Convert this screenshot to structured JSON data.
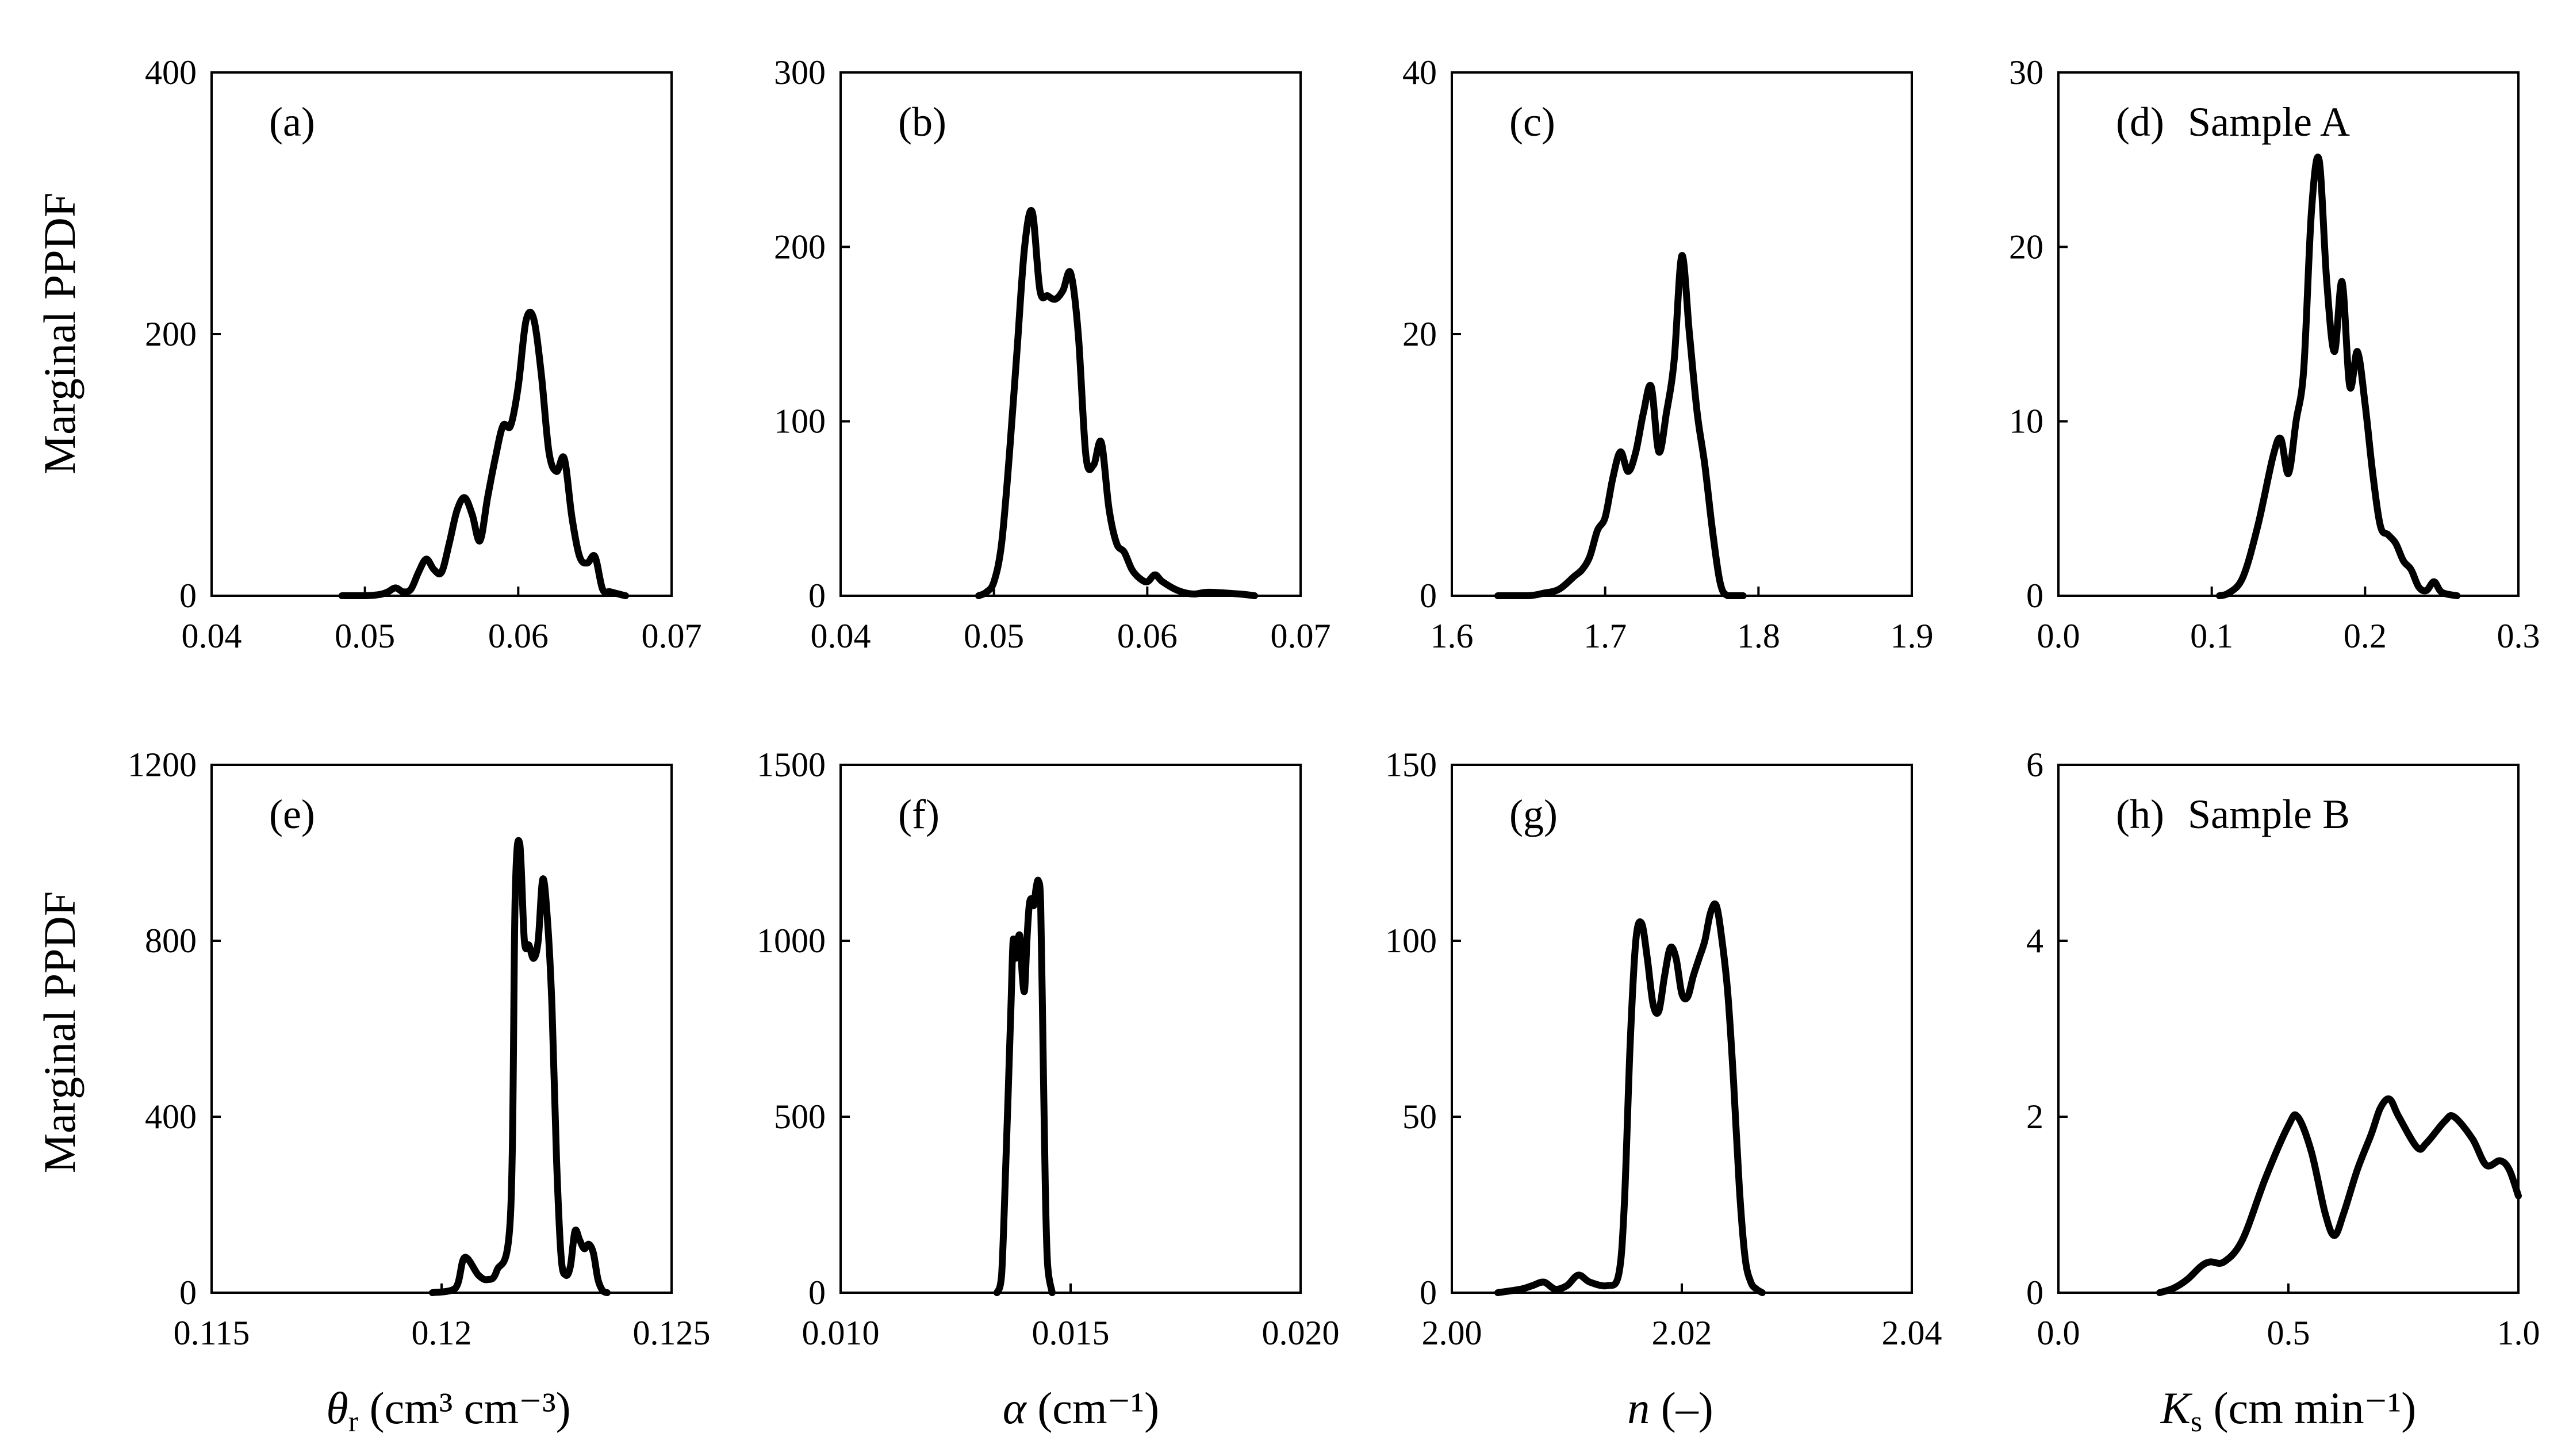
{
  "figure": {
    "ylabel_rows": [
      "Marginal PPDF",
      "Marginal PPDF"
    ],
    "column_xlabels": [
      {
        "sym": "θ",
        "sub": "r",
        "rest": " (cm³ cm⁻³)",
        "italic": true
      },
      {
        "sym": "α",
        "sub": "",
        "rest": " (cm⁻¹)",
        "italic": true
      },
      {
        "sym": "n",
        "sub": "",
        "rest": " (–)",
        "italic": true
      },
      {
        "sym": "K",
        "sub": "s",
        "rest": " (cm min⁻¹)",
        "italic": true
      }
    ]
  },
  "chart_data": [
    {
      "type": "line",
      "label": "(a)",
      "sample": "",
      "xlim": [
        0.04,
        0.07
      ],
      "ylim": [
        0,
        400
      ],
      "xticks": [
        "0.04",
        "0.05",
        "0.06",
        "0.07"
      ],
      "yticks": [
        "0",
        "200",
        "400"
      ],
      "x": [
        0.0485,
        0.05,
        0.051,
        0.0515,
        0.052,
        0.0525,
        0.053,
        0.0535,
        0.054,
        0.0545,
        0.055,
        0.0555,
        0.056,
        0.0565,
        0.057,
        0.0575,
        0.058,
        0.0585,
        0.059,
        0.0595,
        0.06,
        0.0605,
        0.061,
        0.0615,
        0.062,
        0.0625,
        0.063,
        0.0635,
        0.064,
        0.0645,
        0.065,
        0.0655,
        0.066,
        0.067
      ],
      "y": [
        0,
        0,
        1,
        3,
        6,
        3,
        5,
        18,
        28,
        20,
        18,
        40,
        65,
        75,
        62,
        42,
        75,
        105,
        130,
        130,
        160,
        210,
        212,
        170,
        110,
        95,
        105,
        60,
        30,
        25,
        30,
        5,
        3,
        0
      ]
    },
    {
      "type": "line",
      "label": "(b)",
      "sample": "",
      "xlim": [
        0.04,
        0.07
      ],
      "ylim": [
        0,
        300
      ],
      "xticks": [
        "0.04",
        "0.05",
        "0.06",
        "0.07"
      ],
      "yticks": [
        "0",
        "100",
        "200",
        "300"
      ],
      "x": [
        0.049,
        0.0495,
        0.05,
        0.0505,
        0.051,
        0.0515,
        0.052,
        0.0525,
        0.053,
        0.0535,
        0.054,
        0.0545,
        0.055,
        0.0555,
        0.056,
        0.0565,
        0.057,
        0.0575,
        0.058,
        0.0585,
        0.059,
        0.0595,
        0.06,
        0.0605,
        0.061,
        0.062,
        0.063,
        0.064,
        0.066,
        0.067
      ],
      "y": [
        0,
        2,
        8,
        30,
        80,
        140,
        200,
        220,
        175,
        172,
        170,
        175,
        185,
        150,
        80,
        75,
        88,
        50,
        30,
        25,
        15,
        10,
        8,
        12,
        8,
        3,
        1,
        2,
        1,
        0
      ]
    },
    {
      "type": "line",
      "label": "(c)",
      "sample": "",
      "xlim": [
        1.6,
        1.9
      ],
      "ylim": [
        0,
        40
      ],
      "xticks": [
        "1.6",
        "1.7",
        "1.8",
        "1.9"
      ],
      "yticks": [
        "0",
        "20",
        "40"
      ],
      "x": [
        1.63,
        1.65,
        1.66,
        1.67,
        1.68,
        1.685,
        1.69,
        1.695,
        1.7,
        1.705,
        1.71,
        1.715,
        1.72,
        1.725,
        1.73,
        1.735,
        1.74,
        1.745,
        1.75,
        1.755,
        1.76,
        1.765,
        1.77,
        1.775,
        1.78,
        1.79
      ],
      "y": [
        0,
        0,
        0.2,
        0.5,
        1.5,
        2,
        3,
        5,
        6,
        9,
        11,
        9.5,
        11,
        14,
        16,
        11,
        14,
        18,
        26,
        20,
        14,
        10,
        5,
        1,
        0,
        0
      ]
    },
    {
      "type": "line",
      "label": "(d)",
      "sample": "Sample A",
      "xlim": [
        0.0,
        0.3
      ],
      "ylim": [
        0,
        30
      ],
      "xticks": [
        "0.0",
        "0.1",
        "0.2",
        "0.3"
      ],
      "yticks": [
        "0",
        "10",
        "20",
        "30"
      ],
      "x": [
        0.105,
        0.11,
        0.12,
        0.13,
        0.14,
        0.145,
        0.15,
        0.155,
        0.16,
        0.165,
        0.17,
        0.175,
        0.18,
        0.185,
        0.19,
        0.195,
        0.2,
        0.205,
        0.21,
        0.215,
        0.22,
        0.225,
        0.23,
        0.235,
        0.24,
        0.245,
        0.25,
        0.26
      ],
      "y": [
        0,
        0.1,
        1,
        4,
        8,
        9,
        7,
        10,
        13,
        22,
        25,
        18,
        14,
        18,
        12,
        14,
        11,
        7,
        4,
        3.5,
        3,
        2,
        1.5,
        0.5,
        0.3,
        0.8,
        0.2,
        0
      ]
    },
    {
      "type": "line",
      "label": "(e)",
      "sample": "",
      "xlim": [
        0.115,
        0.125
      ],
      "ylim": [
        0,
        1200
      ],
      "xticks": [
        "0.115",
        "0.12",
        "0.125"
      ],
      "yticks": [
        "0",
        "400",
        "800",
        "1200"
      ],
      "x": [
        0.1198,
        0.1203,
        0.1205,
        0.1208,
        0.121,
        0.1212,
        0.1215,
        0.1216,
        0.1217,
        0.1218,
        0.1219,
        0.122,
        0.1221,
        0.1222,
        0.1223,
        0.1224,
        0.1225,
        0.1226,
        0.1227,
        0.1228,
        0.1229,
        0.123,
        0.1231,
        0.1232,
        0.1233,
        0.1234,
        0.1235,
        0.1236
      ],
      "y": [
        0,
        10,
        80,
        40,
        30,
        50,
        180,
        900,
        1020,
        800,
        790,
        760,
        800,
        940,
        850,
        650,
        300,
        80,
        40,
        60,
        140,
        120,
        100,
        110,
        90,
        30,
        5,
        0
      ]
    },
    {
      "type": "line",
      "label": "(f)",
      "sample": "",
      "xlim": [
        0.01,
        0.02
      ],
      "ylim": [
        0,
        1500
      ],
      "xticks": [
        "0.010",
        "0.015",
        "0.020"
      ],
      "yticks": [
        "0",
        "500",
        "1000",
        "1500"
      ],
      "x": [
        0.0134,
        0.0135,
        0.0136,
        0.0137,
        0.01375,
        0.0138,
        0.01385,
        0.0139,
        0.01395,
        0.014,
        0.01405,
        0.0141,
        0.01415,
        0.0142,
        0.01425,
        0.0143,
        0.01435,
        0.0144,
        0.01445,
        0.0145,
        0.0146
      ],
      "y": [
        0,
        50,
        400,
        800,
        1000,
        950,
        1000,
        1010,
        900,
        860,
        1000,
        1100,
        1120,
        1100,
        1150,
        1170,
        1100,
        700,
        300,
        80,
        0
      ]
    },
    {
      "type": "line",
      "label": "(g)",
      "sample": "",
      "xlim": [
        2.0,
        2.04
      ],
      "ylim": [
        0,
        150
      ],
      "xticks": [
        "2.00",
        "2.02",
        "2.04"
      ],
      "yticks": [
        "0",
        "50",
        "100",
        "150"
      ],
      "x": [
        2.004,
        2.006,
        2.007,
        2.008,
        2.009,
        2.01,
        2.011,
        2.012,
        2.0135,
        2.0145,
        2.015,
        2.0155,
        2.016,
        2.0165,
        2.017,
        2.0175,
        2.018,
        2.0185,
        2.019,
        2.0195,
        2.02,
        2.0205,
        2.021,
        2.0215,
        2.022,
        2.0225,
        2.023,
        2.0235,
        2.024,
        2.0245,
        2.025,
        2.0255,
        2.026,
        2.0265,
        2.027
      ],
      "y": [
        0,
        1,
        2,
        3,
        1,
        2,
        5,
        3,
        2,
        5,
        25,
        70,
        100,
        105,
        95,
        82,
        80,
        90,
        98,
        95,
        85,
        84,
        90,
        95,
        100,
        108,
        110,
        100,
        85,
        60,
        30,
        10,
        3,
        1,
        0
      ]
    },
    {
      "type": "line",
      "label": "(h)",
      "sample": "Sample B",
      "xlim": [
        0.0,
        1.0
      ],
      "ylim": [
        0,
        6
      ],
      "xticks": [
        "0.0",
        "0.5",
        "1.0"
      ],
      "yticks": [
        "0",
        "2",
        "4",
        "6"
      ],
      "x": [
        0.22,
        0.25,
        0.28,
        0.31,
        0.33,
        0.36,
        0.4,
        0.45,
        0.5,
        0.52,
        0.55,
        0.58,
        0.6,
        0.62,
        0.65,
        0.68,
        0.7,
        0.72,
        0.74,
        0.78,
        0.8,
        0.84,
        0.86,
        0.9,
        0.93,
        0.96,
        0.98,
        1.0
      ],
      "y": [
        0,
        0.05,
        0.15,
        0.3,
        0.35,
        0.35,
        0.6,
        1.3,
        1.9,
        2.0,
        1.6,
        0.9,
        0.65,
        0.9,
        1.4,
        1.8,
        2.1,
        2.2,
        2.0,
        1.65,
        1.7,
        1.95,
        2.0,
        1.75,
        1.45,
        1.5,
        1.4,
        1.1
      ]
    }
  ]
}
